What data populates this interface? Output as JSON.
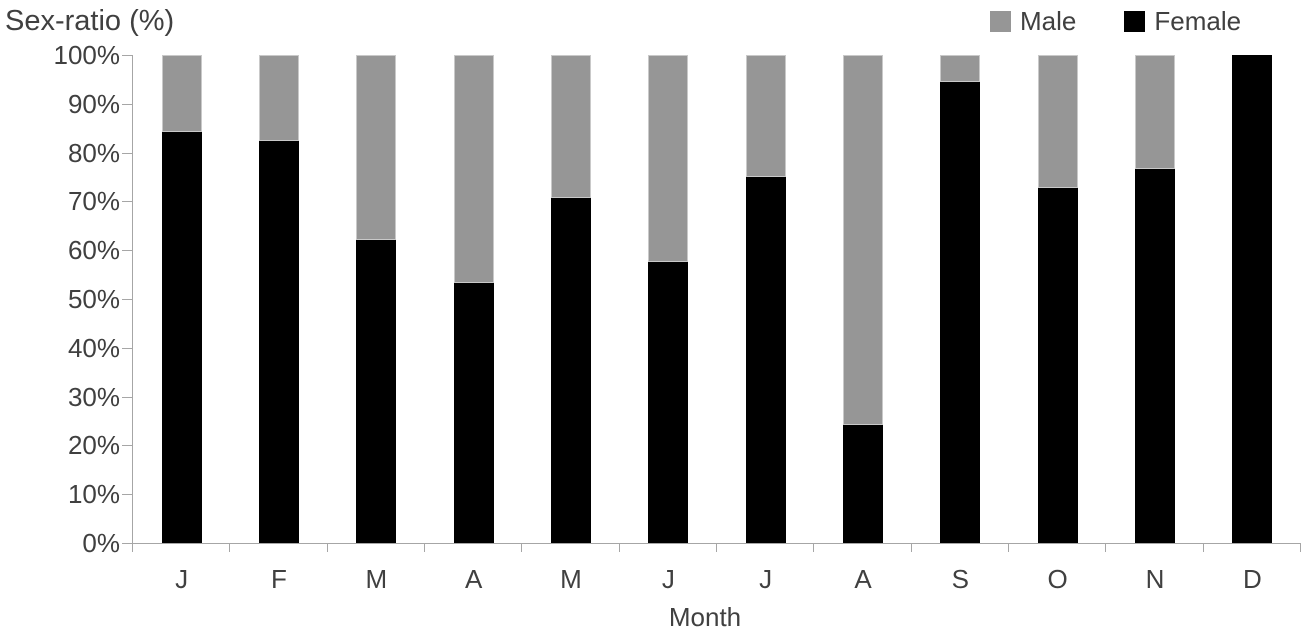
{
  "chart_data": {
    "type": "bar",
    "stacked": true,
    "percent": true,
    "title": "Sex-ratio (%)",
    "xlabel": "Month",
    "ylabel": "Sex-ratio (%)",
    "categories": [
      "J",
      "F",
      "M",
      "A",
      "M",
      "J",
      "J",
      "A",
      "S",
      "O",
      "N",
      "D"
    ],
    "series": [
      {
        "name": "Female",
        "color": "#000000",
        "values": [
          84.3,
          82.4,
          62.1,
          53.3,
          70.6,
          57.6,
          75.1,
          24.2,
          94.4,
          72.7,
          76.6,
          100.0
        ]
      },
      {
        "name": "Male",
        "color": "#969696",
        "values": [
          15.7,
          17.6,
          37.9,
          46.7,
          29.4,
          42.4,
          24.9,
          75.8,
          5.6,
          27.3,
          23.4,
          0.0
        ]
      }
    ],
    "ylim": [
      0,
      100
    ],
    "ytick_labels": [
      "0%",
      "10%",
      "20%",
      "30%",
      "40%",
      "50%",
      "60%",
      "70%",
      "80%",
      "90%",
      "100%"
    ],
    "grid": false,
    "legend": {
      "position": "top-right",
      "items": [
        {
          "label": "Male",
          "color": "#969696"
        },
        {
          "label": "Female",
          "color": "#000000"
        }
      ]
    },
    "colors": {
      "male": "#969696",
      "female": "#000000",
      "axis": "#a6a6a6",
      "text": "#404040"
    }
  }
}
